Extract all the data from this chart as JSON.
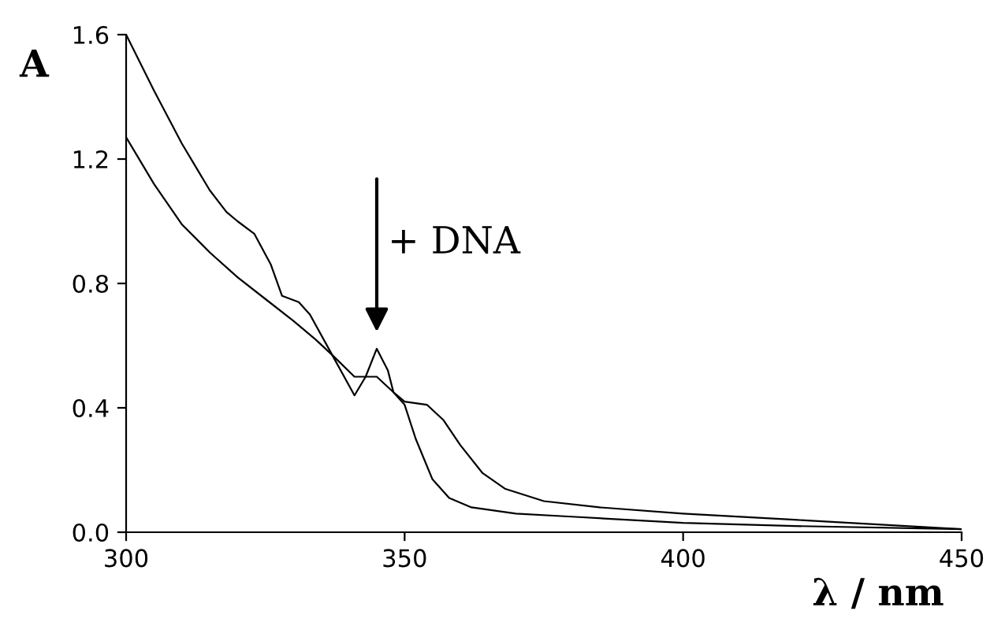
{
  "chart_data": {
    "type": "line",
    "xlabel": "λ / nm",
    "ylabel": "A",
    "xlim": [
      300,
      450
    ],
    "xticks": [
      300,
      350,
      400,
      450
    ],
    "ylim": [
      0,
      1.6
    ],
    "yticks": [
      {
        "value": 0,
        "label": "0.0"
      },
      0.4,
      0.8,
      1.2,
      1.6
    ],
    "grid": false,
    "legend": false,
    "marker": "none",
    "line_style": "solid",
    "annotations": [
      {
        "text": "+ DNA",
        "x": 345,
        "y": 0.6
      }
    ],
    "series": [
      {
        "color": "#000000",
        "x": [
          300,
          305,
          310,
          315,
          318,
          320,
          323,
          326,
          328,
          331,
          333,
          337,
          341,
          345,
          348,
          350,
          354,
          357,
          360,
          364,
          368,
          375,
          385,
          400,
          420,
          450
        ],
        "values": [
          1.6,
          1.42,
          1.25,
          1.1,
          1.03,
          1.0,
          0.96,
          0.86,
          0.76,
          0.74,
          0.7,
          0.57,
          0.5,
          0.5,
          0.45,
          0.42,
          0.41,
          0.36,
          0.28,
          0.19,
          0.14,
          0.1,
          0.08,
          0.06,
          0.04,
          0.01
        ]
      },
      {
        "color": "#000000",
        "x": [
          300,
          305,
          310,
          315,
          320,
          325,
          330,
          334,
          337,
          341,
          343,
          345,
          347,
          348,
          350,
          352,
          355,
          358,
          362,
          370,
          380,
          400,
          420,
          450
        ],
        "values": [
          1.27,
          1.12,
          0.99,
          0.9,
          0.82,
          0.75,
          0.68,
          0.62,
          0.57,
          0.44,
          0.5,
          0.59,
          0.52,
          0.45,
          0.41,
          0.3,
          0.17,
          0.11,
          0.08,
          0.06,
          0.05,
          0.03,
          0.02,
          0.01
        ]
      }
    ]
  }
}
